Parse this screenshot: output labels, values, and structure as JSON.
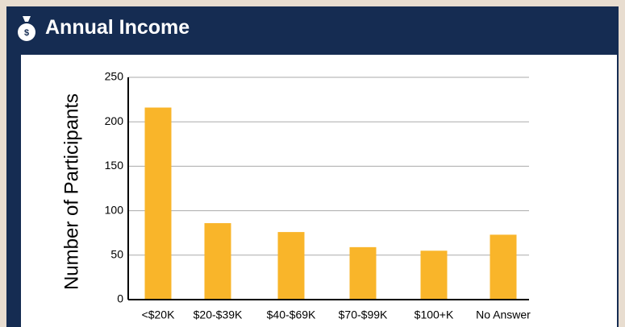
{
  "chart_data": {
    "type": "bar",
    "title": "Annual Income",
    "y_label": "Number of Participants",
    "categories": [
      "<$20K",
      "$20-$39K",
      "$40-$69K",
      "$70-$99K",
      "$100+K",
      "No Answer"
    ],
    "values": [
      216,
      86,
      76,
      59,
      55,
      73
    ],
    "color": "#f9b52a",
    "ylim": [
      0,
      250
    ],
    "yticks": [
      0,
      50,
      100,
      150,
      200,
      250
    ],
    "grid": true
  }
}
